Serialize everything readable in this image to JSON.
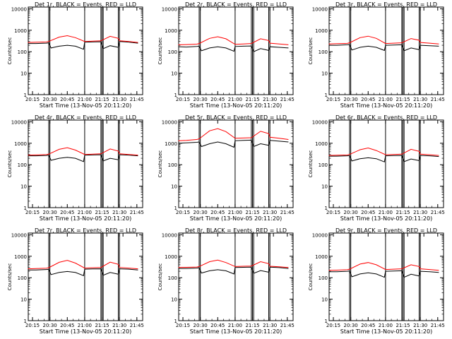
{
  "chart_data": [
    {
      "type": "line",
      "title": "Det 1r, BLACK = Events, RED = LLD",
      "ylabel": "Counts/sec",
      "xlabel": "Start Time (13-Nov-05 20:11:20)",
      "x_ticks": [
        "20:15",
        "20:30",
        "20:45",
        "21:00",
        "21:15",
        "21:30",
        "21:45"
      ],
      "y_ticks": [
        "1",
        "10",
        "100",
        "1000",
        "10000"
      ],
      "yscale": "log",
      "ylim": [
        1,
        12000
      ],
      "series": [
        {
          "color": "#000000",
          "x": [
            "20:11",
            "20:18",
            "20:27",
            "20:29",
            "20:31",
            "20:38",
            "20:45",
            "20:52",
            "20:59",
            "21:00",
            "21:07",
            "21:14",
            "21:16",
            "21:22",
            "21:29",
            "21:30",
            "21:38",
            "21:46"
          ],
          "values": [
            240,
            240,
            250,
            260,
            150,
            180,
            200,
            180,
            130,
            280,
            285,
            290,
            140,
            190,
            160,
            300,
            280,
            250
          ]
        },
        {
          "color": "#ff0000",
          "x": [
            "20:11",
            "20:18",
            "20:27",
            "20:29",
            "20:38",
            "20:45",
            "20:52",
            "21:00",
            "21:07",
            "21:14",
            "21:22",
            "21:29",
            "21:30",
            "21:38",
            "21:46"
          ],
          "values": [
            270,
            275,
            285,
            300,
            480,
            560,
            450,
            300,
            310,
            320,
            520,
            420,
            320,
            300,
            270
          ]
        }
      ]
    },
    {
      "type": "line",
      "title": "Det 2r, BLACK = Events, RED = LLD",
      "ylabel": "Counts/sec",
      "xlabel": "Start Time (13-Nov-05 20:11:20)",
      "x_ticks": [
        "20:15",
        "20:30",
        "20:45",
        "21:00",
        "21:15",
        "21:30",
        "21:45"
      ],
      "y_ticks": [
        "1",
        "10",
        "100",
        "1000",
        "10000"
      ],
      "yscale": "log",
      "ylim": [
        1,
        12000
      ],
      "series": [
        {
          "color": "#000000",
          "x": [
            "20:11",
            "20:18",
            "20:27",
            "20:29",
            "20:31",
            "20:38",
            "20:45",
            "20:52",
            "20:59",
            "21:00",
            "21:07",
            "21:14",
            "21:16",
            "21:22",
            "21:29",
            "21:30",
            "21:38",
            "21:46"
          ],
          "values": [
            170,
            165,
            175,
            180,
            110,
            150,
            170,
            150,
            105,
            175,
            180,
            185,
            100,
            140,
            115,
            170,
            160,
            150
          ]
        },
        {
          "color": "#ff0000",
          "x": [
            "20:11",
            "20:18",
            "20:27",
            "20:29",
            "20:38",
            "20:45",
            "20:52",
            "21:00",
            "21:07",
            "21:14",
            "21:22",
            "21:29",
            "21:30",
            "21:38",
            "21:46"
          ],
          "values": [
            210,
            215,
            225,
            240,
            420,
            500,
            400,
            220,
            230,
            240,
            400,
            330,
            250,
            230,
            210
          ]
        }
      ]
    },
    {
      "type": "line",
      "title": "Det 3r, BLACK = Events, RED = LLD",
      "ylabel": "Counts/sec",
      "xlabel": "Start Time (13-Nov-05 20:11:20)",
      "x_ticks": [
        "20:15",
        "20:30",
        "20:45",
        "21:00",
        "21:15",
        "21:30",
        "21:45"
      ],
      "y_ticks": [
        "1",
        "10",
        "100",
        "1000",
        "10000"
      ],
      "yscale": "log",
      "ylim": [
        1,
        12000
      ],
      "series": [
        {
          "color": "#000000",
          "x": [
            "20:11",
            "20:18",
            "20:27",
            "20:29",
            "20:31",
            "20:38",
            "20:45",
            "20:52",
            "20:59",
            "21:00",
            "21:07",
            "21:14",
            "21:16",
            "21:22",
            "21:29",
            "21:30",
            "21:38",
            "21:46"
          ],
          "values": [
            200,
            200,
            210,
            215,
            120,
            160,
            180,
            160,
            115,
            200,
            205,
            210,
            110,
            150,
            125,
            200,
            190,
            180
          ]
        },
        {
          "color": "#ff0000",
          "x": [
            "20:11",
            "20:18",
            "20:27",
            "20:29",
            "20:38",
            "20:45",
            "20:52",
            "21:00",
            "21:07",
            "21:14",
            "21:22",
            "21:29",
            "21:30",
            "21:38",
            "21:46"
          ],
          "values": [
            230,
            235,
            245,
            260,
            450,
            530,
            420,
            240,
            250,
            260,
            410,
            340,
            270,
            250,
            230
          ]
        }
      ]
    },
    {
      "type": "line",
      "title": "Det 4r, BLACK = Events, RED = LLD",
      "ylabel": "Counts/sec",
      "xlabel": "Start Time (13-Nov-05 20:11:20)",
      "x_ticks": [
        "20:15",
        "20:30",
        "20:45",
        "21:00",
        "21:15",
        "21:30",
        "21:45"
      ],
      "y_ticks": [
        "1",
        "10",
        "100",
        "1000",
        "10000"
      ],
      "yscale": "log",
      "ylim": [
        1,
        12000
      ],
      "series": [
        {
          "color": "#000000",
          "x": [
            "20:11",
            "20:18",
            "20:27",
            "20:29",
            "20:31",
            "20:38",
            "20:45",
            "20:52",
            "20:59",
            "21:00",
            "21:07",
            "21:14",
            "21:16",
            "21:22",
            "21:29",
            "21:30",
            "21:38",
            "21:46"
          ],
          "values": [
            260,
            260,
            270,
            280,
            160,
            200,
            220,
            200,
            140,
            280,
            285,
            290,
            150,
            200,
            170,
            290,
            280,
            260
          ]
        },
        {
          "color": "#ff0000",
          "x": [
            "20:11",
            "20:18",
            "20:27",
            "20:29",
            "20:38",
            "20:45",
            "20:52",
            "21:00",
            "21:07",
            "21:14",
            "21:22",
            "21:29",
            "21:30",
            "21:38",
            "21:46"
          ],
          "values": [
            280,
            285,
            295,
            310,
            520,
            620,
            480,
            300,
            310,
            320,
            540,
            430,
            320,
            300,
            280
          ]
        }
      ]
    },
    {
      "type": "line",
      "title": "Det 5r, BLACK = Events, RED = LLD",
      "ylabel": "Counts/sec",
      "xlabel": "Start Time (13-Nov-05 20:11:20)",
      "x_ticks": [
        "20:15",
        "20:30",
        "20:45",
        "21:00",
        "21:15",
        "21:30",
        "21:45"
      ],
      "y_ticks": [
        "1",
        "10",
        "100",
        "1000",
        "10000"
      ],
      "yscale": "log",
      "ylim": [
        1,
        12000
      ],
      "series": [
        {
          "color": "#000000",
          "x": [
            "20:11",
            "20:18",
            "20:27",
            "20:29",
            "20:31",
            "20:38",
            "20:45",
            "20:52",
            "20:59",
            "21:00",
            "21:07",
            "21:14",
            "21:16",
            "21:22",
            "21:29",
            "21:30",
            "21:38",
            "21:46"
          ],
          "values": [
            1000,
            1050,
            1100,
            1150,
            700,
            950,
            1150,
            950,
            650,
            1300,
            1350,
            1400,
            700,
            950,
            800,
            1350,
            1250,
            1150
          ]
        },
        {
          "color": "#ff0000",
          "x": [
            "20:11",
            "20:18",
            "20:27",
            "20:29",
            "20:38",
            "20:45",
            "20:52",
            "21:00",
            "21:07",
            "21:14",
            "21:22",
            "21:29",
            "21:30",
            "21:38",
            "21:46"
          ],
          "values": [
            1300,
            1350,
            1500,
            1600,
            3800,
            4800,
            3500,
            1700,
            1750,
            1800,
            3600,
            2800,
            1900,
            1700,
            1500
          ]
        }
      ]
    },
    {
      "type": "line",
      "title": "Det 6r, BLACK = Events, RED = LLD",
      "ylabel": "Counts/sec",
      "xlabel": "Start Time (13-Nov-05 20:11:20)",
      "x_ticks": [
        "20:15",
        "20:30",
        "20:45",
        "21:00",
        "21:15",
        "21:30",
        "21:45"
      ],
      "y_ticks": [
        "1",
        "10",
        "100",
        "1000",
        "10000"
      ],
      "yscale": "log",
      "ylim": [
        1,
        12000
      ],
      "series": [
        {
          "color": "#000000",
          "x": [
            "20:11",
            "20:18",
            "20:27",
            "20:29",
            "20:31",
            "20:38",
            "20:45",
            "20:52",
            "20:59",
            "21:00",
            "21:07",
            "21:14",
            "21:16",
            "21:22",
            "21:29",
            "21:30",
            "21:38",
            "21:46"
          ],
          "values": [
            250,
            250,
            260,
            265,
            150,
            190,
            210,
            190,
            135,
            260,
            265,
            270,
            140,
            185,
            155,
            270,
            260,
            240
          ]
        },
        {
          "color": "#ff0000",
          "x": [
            "20:11",
            "20:18",
            "20:27",
            "20:29",
            "20:38",
            "20:45",
            "20:52",
            "21:00",
            "21:07",
            "21:14",
            "21:22",
            "21:29",
            "21:30",
            "21:38",
            "21:46"
          ],
          "values": [
            270,
            275,
            285,
            300,
            500,
            600,
            460,
            290,
            300,
            310,
            520,
            420,
            310,
            290,
            270
          ]
        }
      ]
    },
    {
      "type": "line",
      "title": "Det 7r, BLACK = Events, RED = LLD",
      "ylabel": "Counts/sec",
      "xlabel": "Start Time (13-Nov-05 20:11:20)",
      "x_ticks": [
        "20:15",
        "20:30",
        "20:45",
        "21:00",
        "21:15",
        "21:30",
        "21:45"
      ],
      "y_ticks": [
        "1",
        "10",
        "100",
        "1000",
        "10000"
      ],
      "yscale": "log",
      "ylim": [
        1,
        12000
      ],
      "series": [
        {
          "color": "#000000",
          "x": [
            "20:11",
            "20:18",
            "20:27",
            "20:29",
            "20:31",
            "20:38",
            "20:45",
            "20:52",
            "20:59",
            "21:00",
            "21:07",
            "21:14",
            "21:16",
            "21:22",
            "21:29",
            "21:30",
            "21:38",
            "21:46"
          ],
          "values": [
            230,
            230,
            240,
            245,
            140,
            175,
            195,
            175,
            125,
            250,
            255,
            260,
            130,
            175,
            145,
            260,
            250,
            230
          ]
        },
        {
          "color": "#ff0000",
          "x": [
            "20:11",
            "20:18",
            "20:27",
            "20:29",
            "20:38",
            "20:45",
            "20:52",
            "21:00",
            "21:07",
            "21:14",
            "21:22",
            "21:29",
            "21:30",
            "21:38",
            "21:46"
          ],
          "values": [
            260,
            265,
            275,
            290,
            520,
            640,
            480,
            280,
            290,
            300,
            530,
            420,
            300,
            280,
            260
          ]
        }
      ]
    },
    {
      "type": "line",
      "title": "Det 8r, BLACK = Events, RED = LLD",
      "ylabel": "Counts/sec",
      "xlabel": "Start Time (13-Nov-05 20:11:20)",
      "x_ticks": [
        "20:15",
        "20:30",
        "20:45",
        "21:00",
        "21:15",
        "21:30",
        "21:45"
      ],
      "y_ticks": [
        "1",
        "10",
        "100",
        "1000",
        "10000"
      ],
      "yscale": "log",
      "ylim": [
        1,
        12000
      ],
      "series": [
        {
          "color": "#000000",
          "x": [
            "20:11",
            "20:18",
            "20:27",
            "20:29",
            "20:31",
            "20:38",
            "20:45",
            "20:52",
            "20:59",
            "21:00",
            "21:07",
            "21:14",
            "21:16",
            "21:22",
            "21:29",
            "21:30",
            "21:38",
            "21:46"
          ],
          "values": [
            270,
            270,
            280,
            290,
            165,
            210,
            235,
            210,
            150,
            300,
            305,
            310,
            160,
            215,
            180,
            310,
            295,
            270
          ]
        },
        {
          "color": "#ff0000",
          "x": [
            "20:11",
            "20:18",
            "20:27",
            "20:29",
            "20:38",
            "20:45",
            "20:52",
            "21:00",
            "21:07",
            "21:14",
            "21:22",
            "21:29",
            "21:30",
            "21:38",
            "21:46"
          ],
          "values": [
            300,
            305,
            315,
            330,
            560,
            660,
            510,
            330,
            340,
            350,
            560,
            450,
            340,
            320,
            300
          ]
        }
      ]
    },
    {
      "type": "line",
      "title": "Det 9r, BLACK = Events, RED = LLD",
      "ylabel": "Counts/sec",
      "xlabel": "Start Time (13-Nov-05 20:11:20)",
      "x_ticks": [
        "20:15",
        "20:30",
        "20:45",
        "21:00",
        "21:15",
        "21:30",
        "21:45"
      ],
      "y_ticks": [
        "1",
        "10",
        "100",
        "1000",
        "10000"
      ],
      "yscale": "log",
      "ylim": [
        1,
        12000
      ],
      "series": [
        {
          "color": "#000000",
          "x": [
            "20:11",
            "20:18",
            "20:27",
            "20:29",
            "20:31",
            "20:38",
            "20:45",
            "20:52",
            "20:59",
            "21:00",
            "21:07",
            "21:14",
            "21:16",
            "21:22",
            "21:29",
            "21:30",
            "21:38",
            "21:46"
          ],
          "values": [
            190,
            190,
            200,
            205,
            110,
            150,
            170,
            150,
            105,
            200,
            205,
            210,
            105,
            145,
            120,
            200,
            190,
            175
          ]
        },
        {
          "color": "#ff0000",
          "x": [
            "20:11",
            "20:18",
            "20:27",
            "20:29",
            "20:38",
            "20:45",
            "20:52",
            "21:00",
            "21:07",
            "21:14",
            "21:22",
            "21:29",
            "21:30",
            "21:38",
            "21:46"
          ],
          "values": [
            220,
            225,
            235,
            250,
            430,
            510,
            400,
            240,
            250,
            260,
            400,
            330,
            260,
            240,
            220
          ]
        }
      ]
    }
  ]
}
